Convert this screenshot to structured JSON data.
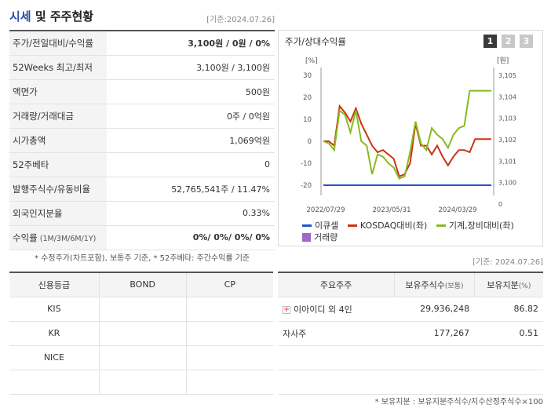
{
  "header": {
    "title_blue": "시세",
    "title_rest": " 및 주주현황",
    "date": "[기준:2024.07.26]"
  },
  "market_table": [
    {
      "label": "주가/전일대비/수익률",
      "value": "3,100원 / 0원 / 0%",
      "bold": true
    },
    {
      "label": "52Weeks 최고/최저",
      "value": "3,100원 / 3,100원"
    },
    {
      "label": "액면가",
      "value": "500원"
    },
    {
      "label": "거래량/거래대금",
      "value": "0주 / 0억원"
    },
    {
      "label": "시가총액",
      "value": "1,069억원"
    },
    {
      "label": "52주베타",
      "value": "0"
    },
    {
      "label": "발행주식수/유동비율",
      "value": "52,765,541주 / 11.47%"
    },
    {
      "label": "외국인지분율",
      "value": "0.33%"
    },
    {
      "label": "수익률",
      "label_small": " (1M/3M/6M/1Y)",
      "value": "0%/ 0%/ 0%/ 0%",
      "bold": true
    }
  ],
  "footnote1": "* 수정주가(차트포함), 보통주 기준, * 52주베타: 주간수익률 기준",
  "chart_panel": {
    "title": "주가/상대수익률",
    "tabs": [
      "1",
      "2",
      "3"
    ],
    "active_tab": 0
  },
  "chart_data": {
    "type": "line",
    "left_axis_unit": "[%]",
    "right_axis_unit": "[원]",
    "left_ticks": [
      30,
      20,
      10,
      0,
      -10,
      -20
    ],
    "right_ticks": [
      "3,105",
      "3,104",
      "3,103",
      "3,102",
      "3,101",
      "3,100",
      "0"
    ],
    "ylim_left": [
      -20,
      30
    ],
    "x_ticks": [
      "2022/07/29",
      "2023/05/31",
      "2024/03/29"
    ],
    "x_tick_positions": [
      0,
      0.42,
      0.84
    ],
    "series": [
      {
        "name": "이큐셀",
        "color": "#2255cc",
        "values": [
          -20,
          -20,
          -20,
          -20,
          -20,
          -20,
          -20,
          -20,
          -20,
          -20,
          -20,
          -20,
          -20,
          -20,
          -20,
          -20,
          -20,
          -20,
          -20,
          -20,
          -20,
          -20,
          -20,
          -20,
          -20,
          -20,
          -20,
          -20,
          -20,
          -20,
          -20,
          -20
        ]
      },
      {
        "name": "KOSDAQ대비(좌)",
        "color": "#cc3311",
        "values": [
          0,
          0,
          -2,
          16,
          13,
          9,
          15,
          8,
          3,
          -2,
          -5,
          -4,
          -6,
          -8,
          -16,
          -15,
          -10,
          8,
          -2,
          -2,
          -6,
          -2,
          -7,
          -11,
          -7,
          -4,
          -4,
          -5,
          1,
          1,
          1,
          1
        ]
      },
      {
        "name": "기계,장비대비(좌)",
        "color": "#88bb22",
        "values": [
          0,
          -1,
          -4,
          14,
          12,
          4,
          14,
          0,
          -2,
          -15,
          -6,
          -7,
          -10,
          -12,
          -17,
          -16,
          -5,
          9,
          -1,
          -4,
          6,
          3,
          1,
          -3,
          3,
          6,
          7,
          23,
          23,
          23,
          23,
          23
        ]
      },
      {
        "name": "거래량",
        "color": "#a066cc",
        "values": []
      }
    ]
  },
  "date2": "[기준: 2024.07.26]",
  "credit_table": {
    "headers": [
      "신용등급",
      "BOND",
      "CP"
    ],
    "rows": [
      [
        "KIS",
        "",
        ""
      ],
      [
        "KR",
        "",
        ""
      ],
      [
        "NICE",
        "",
        ""
      ],
      [
        "",
        "",
        ""
      ]
    ]
  },
  "holders_table": {
    "headers": [
      "주요주주",
      "보유주식수",
      "보유지분"
    ],
    "header_units": [
      "",
      "(보통)",
      "(%)"
    ],
    "rows": [
      {
        "name": "이아이디 외 4인",
        "expandable": true,
        "shares": "29,936,248",
        "pct": "86.82"
      },
      {
        "name": "자사주",
        "expandable": false,
        "shares": "177,267",
        "pct": "0.51"
      },
      {
        "name": "",
        "expandable": false,
        "shares": "",
        "pct": ""
      },
      {
        "name": "",
        "expandable": false,
        "shares": "",
        "pct": ""
      }
    ]
  },
  "footnote2": "* 보유지분 : 보유지분주식수/지수산정주식수×100"
}
